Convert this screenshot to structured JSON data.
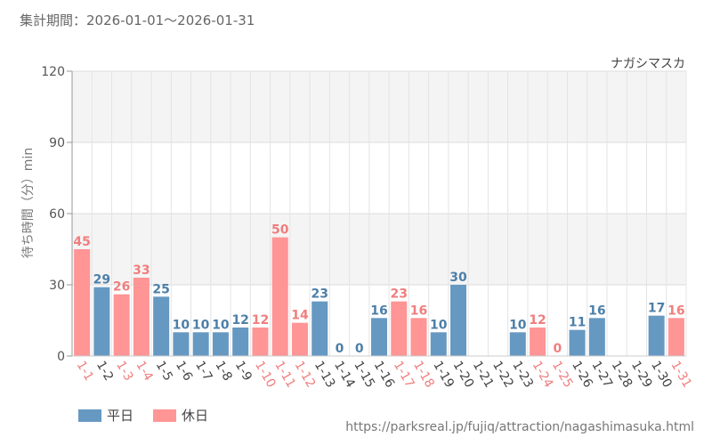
{
  "period_label": "集計期間：2026-01-01～2026-01-31",
  "legend": {
    "weekday": "平日",
    "holiday": "休日"
  },
  "source_url": "https://parksreal.jp/fujiq/attraction/nagashimasuka.html",
  "colors": {
    "weekday": "#6699c2",
    "holiday": "#ff9595",
    "weekday_label": "#4d7fa8",
    "holiday_label": "#f07e7e"
  },
  "chart_data": {
    "type": "bar",
    "title": "ナガシマスカ",
    "xlabel": "",
    "ylabel": "待ち時間（分）min",
    "ylim": [
      0,
      120
    ],
    "yticks": [
      0,
      30,
      60,
      90,
      120
    ],
    "categories": [
      "1-1",
      "1-2",
      "1-3",
      "1-4",
      "1-5",
      "1-6",
      "1-7",
      "1-8",
      "1-9",
      "1-10",
      "1-11",
      "1-12",
      "1-13",
      "1-14",
      "1-15",
      "1-16",
      "1-17",
      "1-18",
      "1-19",
      "1-20",
      "1-21",
      "1-22",
      "1-23",
      "1-24",
      "1-25",
      "1-26",
      "1-27",
      "1-28",
      "1-29",
      "1-30",
      "1-31"
    ],
    "values": [
      45,
      29,
      26,
      33,
      25,
      10,
      10,
      10,
      12,
      12,
      50,
      14,
      23,
      0,
      0,
      16,
      23,
      16,
      10,
      30,
      null,
      null,
      10,
      12,
      0,
      11,
      16,
      null,
      null,
      17,
      16
    ],
    "day_type": [
      "holiday",
      "weekday",
      "holiday",
      "holiday",
      "weekday",
      "weekday",
      "weekday",
      "weekday",
      "weekday",
      "holiday",
      "holiday",
      "holiday",
      "weekday",
      "weekday",
      "weekday",
      "weekday",
      "holiday",
      "holiday",
      "weekday",
      "weekday",
      "weekday",
      "weekday",
      "weekday",
      "holiday",
      "holiday",
      "weekday",
      "weekday",
      "weekday",
      "weekday",
      "weekday",
      "holiday"
    ]
  }
}
